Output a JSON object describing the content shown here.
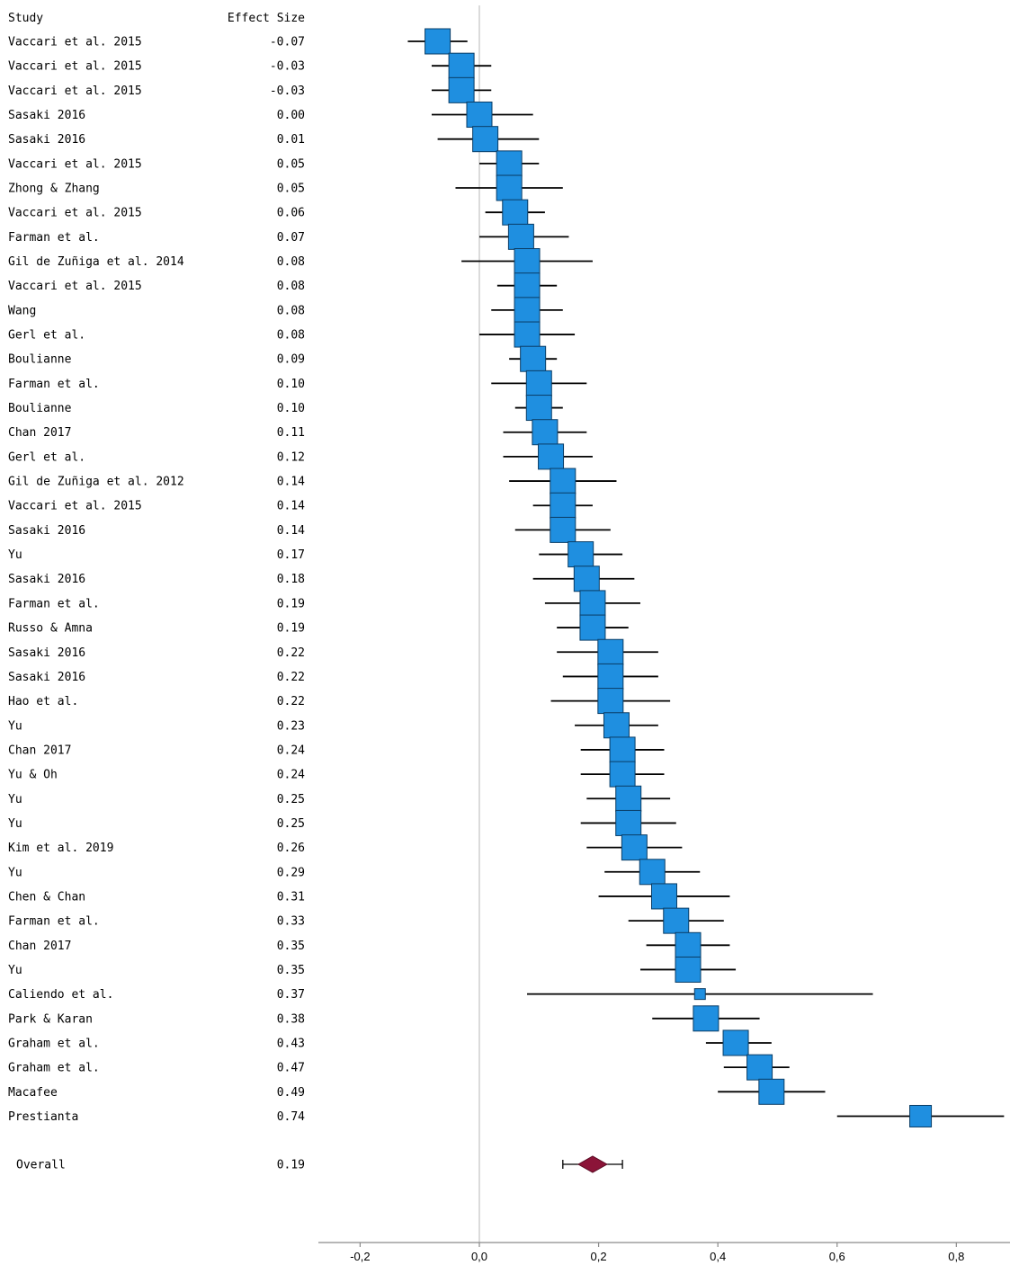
{
  "chart_data": {
    "type": "forest",
    "header": {
      "study": "Study",
      "effect": "Effect Size"
    },
    "studies": [
      {
        "label": "Vaccari et al. 2015",
        "effect_text": "-0.07",
        "effect": -0.07,
        "ci": [
          -0.12,
          -0.02
        ],
        "weight": "large"
      },
      {
        "label": "Vaccari et al. 2015",
        "effect_text": "-0.03",
        "effect": -0.03,
        "ci": [
          -0.08,
          0.02
        ],
        "weight": "large"
      },
      {
        "label": "Vaccari et al. 2015",
        "effect_text": "-0.03",
        "effect": -0.03,
        "ci": [
          -0.08,
          0.02
        ],
        "weight": "large"
      },
      {
        "label": "Sasaki 2016",
        "effect_text": "0.00",
        "effect": 0.0,
        "ci": [
          -0.08,
          0.09
        ],
        "weight": "large"
      },
      {
        "label": "Sasaki 2016",
        "effect_text": "0.01",
        "effect": 0.01,
        "ci": [
          -0.07,
          0.1
        ],
        "weight": "large"
      },
      {
        "label": "Vaccari et al. 2015",
        "effect_text": "0.05",
        "effect": 0.05,
        "ci": [
          0.0,
          0.1
        ],
        "weight": "large"
      },
      {
        "label": "Zhong & Zhang",
        "effect_text": "0.05",
        "effect": 0.05,
        "ci": [
          -0.04,
          0.14
        ],
        "weight": "large"
      },
      {
        "label": "Vaccari et al. 2015",
        "effect_text": "0.06",
        "effect": 0.06,
        "ci": [
          0.01,
          0.11
        ],
        "weight": "large"
      },
      {
        "label": "Farman et al.",
        "effect_text": "0.07",
        "effect": 0.07,
        "ci": [
          0.0,
          0.15
        ],
        "weight": "large"
      },
      {
        "label": "Gil de Zuñiga et al. 2014",
        "effect_text": "0.08",
        "effect": 0.08,
        "ci": [
          -0.03,
          0.19
        ],
        "weight": "large"
      },
      {
        "label": "Vaccari et al. 2015",
        "effect_text": "0.08",
        "effect": 0.08,
        "ci": [
          0.03,
          0.13
        ],
        "weight": "large"
      },
      {
        "label": "Wang",
        "effect_text": "0.08",
        "effect": 0.08,
        "ci": [
          0.02,
          0.14
        ],
        "weight": "large"
      },
      {
        "label": "Gerl et al.",
        "effect_text": "0.08",
        "effect": 0.08,
        "ci": [
          0.0,
          0.16
        ],
        "weight": "large"
      },
      {
        "label": "Boulianne",
        "effect_text": "0.09",
        "effect": 0.09,
        "ci": [
          0.05,
          0.13
        ],
        "weight": "large"
      },
      {
        "label": "Farman et al.",
        "effect_text": "0.10",
        "effect": 0.1,
        "ci": [
          0.02,
          0.18
        ],
        "weight": "large"
      },
      {
        "label": "Boulianne",
        "effect_text": "0.10",
        "effect": 0.1,
        "ci": [
          0.06,
          0.14
        ],
        "weight": "large"
      },
      {
        "label": "Chan 2017",
        "effect_text": "0.11",
        "effect": 0.11,
        "ci": [
          0.04,
          0.18
        ],
        "weight": "large"
      },
      {
        "label": "Gerl et al.",
        "effect_text": "0.12",
        "effect": 0.12,
        "ci": [
          0.04,
          0.19
        ],
        "weight": "large"
      },
      {
        "label": "Gil de Zuñiga et al. 2012",
        "effect_text": "0.14",
        "effect": 0.14,
        "ci": [
          0.05,
          0.23
        ],
        "weight": "large"
      },
      {
        "label": "Vaccari et al. 2015",
        "effect_text": "0.14",
        "effect": 0.14,
        "ci": [
          0.09,
          0.19
        ],
        "weight": "large"
      },
      {
        "label": "Sasaki 2016",
        "effect_text": "0.14",
        "effect": 0.14,
        "ci": [
          0.06,
          0.22
        ],
        "weight": "large"
      },
      {
        "label": "Yu",
        "effect_text": "0.17",
        "effect": 0.17,
        "ci": [
          0.1,
          0.24
        ],
        "weight": "large"
      },
      {
        "label": "Sasaki 2016",
        "effect_text": "0.18",
        "effect": 0.18,
        "ci": [
          0.09,
          0.26
        ],
        "weight": "large"
      },
      {
        "label": "Farman et al.",
        "effect_text": "0.19",
        "effect": 0.19,
        "ci": [
          0.11,
          0.27
        ],
        "weight": "large"
      },
      {
        "label": "Russo & Amna",
        "effect_text": "0.19",
        "effect": 0.19,
        "ci": [
          0.13,
          0.25
        ],
        "weight": "large"
      },
      {
        "label": "Sasaki 2016",
        "effect_text": "0.22",
        "effect": 0.22,
        "ci": [
          0.13,
          0.3
        ],
        "weight": "large"
      },
      {
        "label": "Sasaki 2016",
        "effect_text": "0.22",
        "effect": 0.22,
        "ci": [
          0.14,
          0.3
        ],
        "weight": "large"
      },
      {
        "label": "Hao et al.",
        "effect_text": "0.22",
        "effect": 0.22,
        "ci": [
          0.12,
          0.32
        ],
        "weight": "large"
      },
      {
        "label": "Yu",
        "effect_text": "0.23",
        "effect": 0.23,
        "ci": [
          0.16,
          0.3
        ],
        "weight": "large"
      },
      {
        "label": "Chan 2017",
        "effect_text": "0.24",
        "effect": 0.24,
        "ci": [
          0.17,
          0.31
        ],
        "weight": "large"
      },
      {
        "label": "Yu & Oh",
        "effect_text": "0.24",
        "effect": 0.24,
        "ci": [
          0.17,
          0.31
        ],
        "weight": "large"
      },
      {
        "label": "Yu",
        "effect_text": "0.25",
        "effect": 0.25,
        "ci": [
          0.18,
          0.32
        ],
        "weight": "large"
      },
      {
        "label": "Yu",
        "effect_text": "0.25",
        "effect": 0.25,
        "ci": [
          0.17,
          0.33
        ],
        "weight": "large"
      },
      {
        "label": "Kim et al. 2019",
        "effect_text": "0.26",
        "effect": 0.26,
        "ci": [
          0.18,
          0.34
        ],
        "weight": "large"
      },
      {
        "label": "Yu",
        "effect_text": "0.29",
        "effect": 0.29,
        "ci": [
          0.21,
          0.37
        ],
        "weight": "large"
      },
      {
        "label": "Chen & Chan",
        "effect_text": "0.31",
        "effect": 0.31,
        "ci": [
          0.2,
          0.42
        ],
        "weight": "large"
      },
      {
        "label": "Farman et al.",
        "effect_text": "0.33",
        "effect": 0.33,
        "ci": [
          0.25,
          0.41
        ],
        "weight": "large"
      },
      {
        "label": "Chan 2017",
        "effect_text": "0.35",
        "effect": 0.35,
        "ci": [
          0.28,
          0.42
        ],
        "weight": "large"
      },
      {
        "label": "Yu",
        "effect_text": "0.35",
        "effect": 0.35,
        "ci": [
          0.27,
          0.43
        ],
        "weight": "large"
      },
      {
        "label": "Caliendo et al.",
        "effect_text": "0.37",
        "effect": 0.37,
        "ci": [
          0.08,
          0.66
        ],
        "weight": "small"
      },
      {
        "label": "Park & Karan",
        "effect_text": "0.38",
        "effect": 0.38,
        "ci": [
          0.29,
          0.47
        ],
        "weight": "large"
      },
      {
        "label": "Graham et al.",
        "effect_text": "0.43",
        "effect": 0.43,
        "ci": [
          0.38,
          0.49
        ],
        "weight": "large"
      },
      {
        "label": "Graham et al.",
        "effect_text": "0.47",
        "effect": 0.47,
        "ci": [
          0.41,
          0.52
        ],
        "weight": "large"
      },
      {
        "label": "Macafee",
        "effect_text": "0.49",
        "effect": 0.49,
        "ci": [
          0.4,
          0.58
        ],
        "weight": "large"
      },
      {
        "label": "Prestianta",
        "effect_text": "0.74",
        "effect": 0.74,
        "ci": [
          0.6,
          0.88
        ],
        "weight": "medium"
      }
    ],
    "overall": {
      "label": "Overall",
      "effect_text": "0.19",
      "effect": 0.19,
      "ci": [
        0.14,
        0.24
      ]
    },
    "x_axis": {
      "range": [
        -0.27,
        0.89
      ],
      "ticks": [
        -0.2,
        0.0,
        0.2,
        0.4,
        0.6,
        0.8
      ],
      "tick_labels": [
        "-0,2",
        "0,0",
        "0,2",
        "0,4",
        "0,6",
        "0,8"
      ],
      "reference_line": 0.0
    },
    "colors": {
      "marker_fill": "#1f8fe0",
      "marker_stroke": "#0a3d66",
      "ci_line": "#000000",
      "overall_fill": "#8b1438",
      "reference_line": "#c8c8c8",
      "axis_line": "#8a8a8a"
    }
  }
}
